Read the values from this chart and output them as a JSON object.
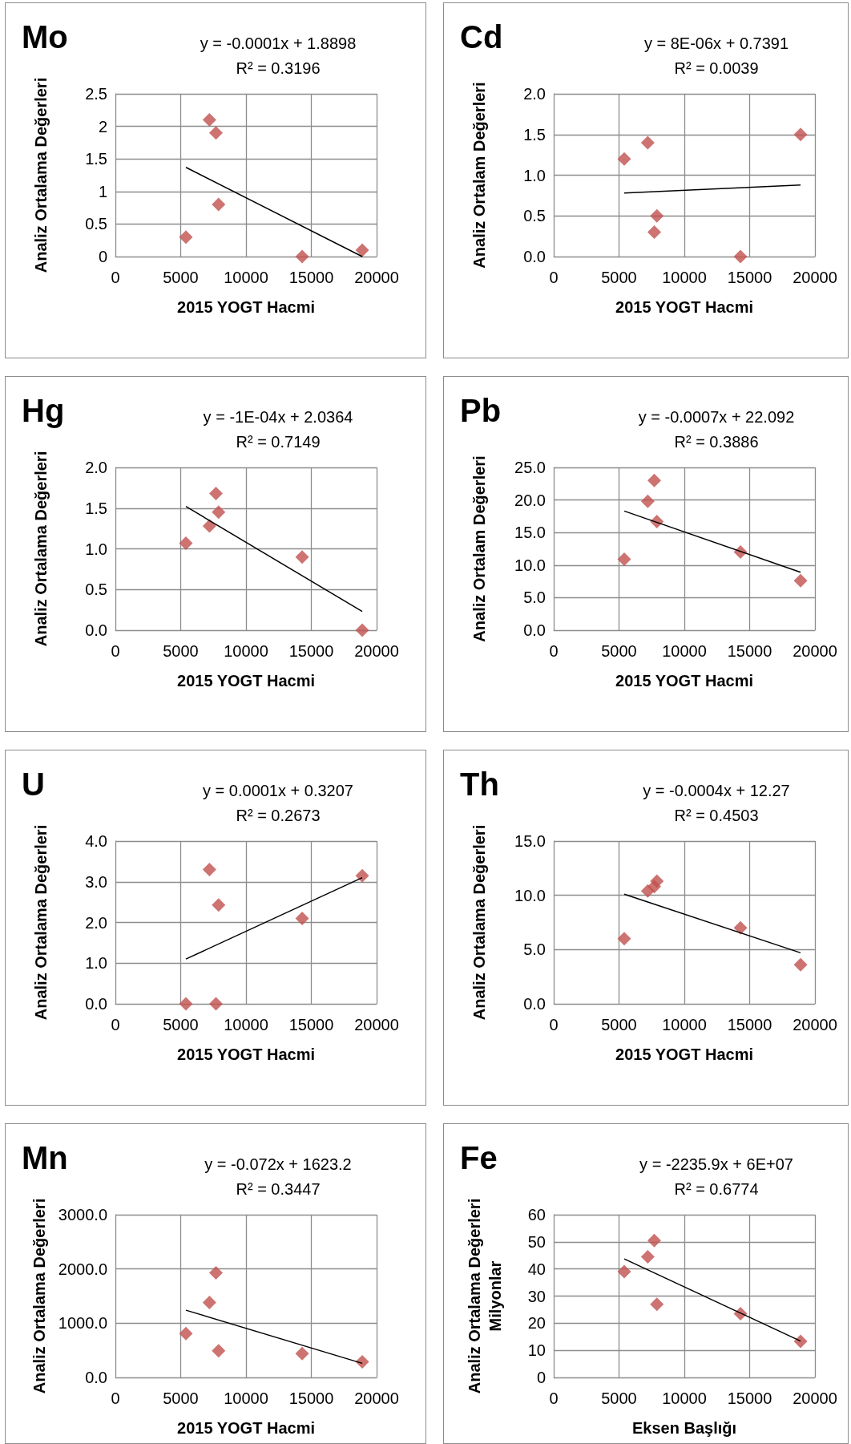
{
  "chart_data": [
    {
      "type": "scatter",
      "title": "Mo",
      "xlabel": "2015 YOGT Hacmi",
      "ylabel": "Analiz Ortalama Değerleri",
      "annotations": [
        "y = -0.0001x + 1.8898",
        "R² = 0.3196"
      ],
      "xlim": [
        0,
        20000
      ],
      "xticks": [
        0,
        5000,
        10000,
        15000,
        20000
      ],
      "ylim": [
        0,
        2.5
      ],
      "yticks": [
        0,
        0.5,
        1,
        1.5,
        2,
        2.5
      ],
      "grid": true,
      "marker": "diamond",
      "series": [
        {
          "color": "#c0504d",
          "x": [
            5400,
            7200,
            7700,
            7900,
            14300,
            18900
          ],
          "values": [
            0.3,
            2.1,
            1.9,
            0.8,
            0,
            0.1
          ]
        },
        {
          "type": "line",
          "color": "#000000",
          "marker": "none",
          "x": [
            5400,
            18900
          ],
          "values": [
            1.37,
            0
          ]
        }
      ]
    },
    {
      "type": "scatter",
      "title": "Cd",
      "xlabel": "2015 YOGT Hacmi",
      "ylabel": "Analiz Ortalam Değerleri",
      "annotations": [
        "y = 8E-06x + 0.7391",
        "R² = 0.0039"
      ],
      "xlim": [
        0,
        20000
      ],
      "xticks": [
        0,
        5000,
        10000,
        15000,
        20000
      ],
      "ylim": [
        0,
        2
      ],
      "yticks": [
        {
          "value": 0,
          "label": "0.0"
        },
        {
          "value": 0.5,
          "label": "0.5"
        },
        {
          "value": 1,
          "label": "1.0"
        },
        {
          "value": 1.5,
          "label": "1.5"
        },
        {
          "value": 2,
          "label": "2.0"
        }
      ],
      "grid": true,
      "marker": "diamond",
      "series": [
        {
          "color": "#c0504d",
          "x": [
            5400,
            7200,
            7700,
            7900,
            14300,
            18900
          ],
          "values": [
            1.2,
            1.4,
            0.3,
            0.5,
            0,
            1.5
          ]
        },
        {
          "type": "line",
          "color": "#000000",
          "marker": "none",
          "x": [
            5400,
            18900
          ],
          "values": [
            0.78,
            0.88
          ]
        }
      ]
    },
    {
      "type": "scatter",
      "title": "Hg",
      "xlabel": "2015 YOGT Hacmi",
      "ylabel": "Analiz Ortalama Değerleri",
      "annotations": [
        "y = -1E-04x + 2.0364",
        "R² = 0.7149"
      ],
      "xlim": [
        0,
        20000
      ],
      "xticks": [
        0,
        5000,
        10000,
        15000,
        20000
      ],
      "ylim": [
        0,
        2
      ],
      "yticks": [
        {
          "value": 0,
          "label": "0.0"
        },
        {
          "value": 0.5,
          "label": "0.5"
        },
        {
          "value": 1,
          "label": "1.0"
        },
        {
          "value": 1.5,
          "label": "1.5"
        },
        {
          "value": 2,
          "label": "2.0"
        }
      ],
      "grid": true,
      "marker": "diamond",
      "series": [
        {
          "color": "#c0504d",
          "x": [
            5400,
            7200,
            7700,
            7900,
            14300,
            18900
          ],
          "values": [
            1.07,
            1.28,
            1.68,
            1.45,
            0.9,
            0
          ]
        },
        {
          "type": "line",
          "color": "#000000",
          "marker": "none",
          "x": [
            5400,
            18900
          ],
          "values": [
            1.52,
            0.23
          ]
        }
      ]
    },
    {
      "type": "scatter",
      "title": "Pb",
      "xlabel": "2015 YOGT Hacmi",
      "ylabel": "Analiz Ortalam Değerleri",
      "annotations": [
        "y = -0.0007x + 22.092",
        "R² = 0.3886"
      ],
      "xlim": [
        0,
        20000
      ],
      "xticks": [
        0,
        5000,
        10000,
        15000,
        20000
      ],
      "ylim": [
        0,
        25
      ],
      "yticks": [
        {
          "value": 0,
          "label": "0.0"
        },
        {
          "value": 5,
          "label": "5.0"
        },
        {
          "value": 10,
          "label": "10.0"
        },
        {
          "value": 15,
          "label": "15.0"
        },
        {
          "value": 20,
          "label": "20.0"
        },
        {
          "value": 25,
          "label": "25.0"
        }
      ],
      "grid": true,
      "marker": "diamond",
      "series": [
        {
          "color": "#c0504d",
          "x": [
            5400,
            7200,
            7700,
            7900,
            14300,
            18900
          ],
          "values": [
            10.9,
            19.8,
            23,
            16.7,
            12,
            7.6
          ]
        },
        {
          "type": "line",
          "color": "#000000",
          "marker": "none",
          "x": [
            5400,
            18900
          ],
          "values": [
            18.3,
            8.9
          ]
        }
      ]
    },
    {
      "type": "scatter",
      "title": "U",
      "xlabel": "2015 YOGT Hacmi",
      "ylabel": "Analiz Ortalama Değerleri",
      "annotations": [
        "y = 0.0001x + 0.3207",
        "R² = 0.2673"
      ],
      "xlim": [
        0,
        20000
      ],
      "xticks": [
        0,
        5000,
        10000,
        15000,
        20000
      ],
      "ylim": [
        0,
        4
      ],
      "yticks": [
        {
          "value": 0,
          "label": "0.0"
        },
        {
          "value": 1,
          "label": "1.0"
        },
        {
          "value": 2,
          "label": "2.0"
        },
        {
          "value": 3,
          "label": "3.0"
        },
        {
          "value": 4,
          "label": "4.0"
        }
      ],
      "grid": true,
      "marker": "diamond",
      "series": [
        {
          "color": "#c0504d",
          "x": [
            5400,
            7200,
            7700,
            7900,
            14300,
            18900
          ],
          "values": [
            0,
            3.3,
            0,
            2.43,
            2.1,
            3.15
          ]
        },
        {
          "type": "line",
          "color": "#000000",
          "marker": "none",
          "x": [
            5400,
            18900
          ],
          "values": [
            1.1,
            3.1
          ]
        }
      ]
    },
    {
      "type": "scatter",
      "title": "Th",
      "xlabel": "2015 YOGT Hacmi",
      "ylabel": "Analiz Ortalama Değerleri",
      "annotations": [
        "y = -0.0004x + 12.27",
        "R² = 0.4503"
      ],
      "xlim": [
        0,
        20000
      ],
      "xticks": [
        0,
        5000,
        10000,
        15000,
        20000
      ],
      "ylim": [
        0,
        15
      ],
      "yticks": [
        {
          "value": 0,
          "label": "0.0"
        },
        {
          "value": 5,
          "label": "5.0"
        },
        {
          "value": 10,
          "label": "10.0"
        },
        {
          "value": 15,
          "label": "15.0"
        }
      ],
      "grid": true,
      "marker": "diamond",
      "series": [
        {
          "color": "#c0504d",
          "x": [
            5400,
            7200,
            7700,
            7900,
            14300,
            18900
          ],
          "values": [
            6,
            10.4,
            10.8,
            11.3,
            7,
            3.6
          ]
        },
        {
          "type": "line",
          "color": "#000000",
          "marker": "none",
          "x": [
            5400,
            18900
          ],
          "values": [
            10.1,
            4.7
          ]
        }
      ]
    },
    {
      "type": "scatter",
      "title": "Mn",
      "xlabel": "2015 YOGT Hacmi",
      "ylabel": "Analiz Ortalama Değerleri",
      "annotations": [
        "y = -0.072x + 1623.2",
        "R² = 0.3447"
      ],
      "xlim": [
        0,
        20000
      ],
      "xticks": [
        0,
        5000,
        10000,
        15000,
        20000
      ],
      "ylim": [
        0,
        3000
      ],
      "yticks": [
        {
          "value": 0,
          "label": "0.0"
        },
        {
          "value": 1000,
          "label": "1000.0"
        },
        {
          "value": 2000,
          "label": "2000.0"
        },
        {
          "value": 3000,
          "label": "3000.0"
        }
      ],
      "grid": true,
      "marker": "diamond",
      "series": [
        {
          "color": "#c0504d",
          "x": [
            5400,
            7200,
            7700,
            7900,
            14300,
            18900
          ],
          "values": [
            810,
            1380,
            1930,
            490,
            440,
            290
          ]
        },
        {
          "type": "line",
          "color": "#000000",
          "marker": "none",
          "x": [
            5400,
            18900
          ],
          "values": [
            1240,
            260
          ]
        }
      ]
    },
    {
      "type": "scatter",
      "title": "Fe",
      "xlabel": "Eksen Başlığı",
      "ylabel": "Analiz Ortalama Değerleri\nMilyonlar",
      "annotations": [
        "y = -2235.9x + 6E+07",
        "R² = 0.6774"
      ],
      "xlim": [
        0,
        20000
      ],
      "xticks": [
        0,
        5000,
        10000,
        15000,
        20000
      ],
      "ylim": [
        0,
        60
      ],
      "yticks": [
        0,
        10,
        20,
        30,
        40,
        50,
        60
      ],
      "grid": true,
      "marker": "diamond",
      "series": [
        {
          "color": "#c0504d",
          "x": [
            5400,
            7200,
            7700,
            7900,
            14300,
            18900
          ],
          "values": [
            39,
            44.5,
            50.5,
            27,
            23.5,
            13.3
          ]
        },
        {
          "type": "line",
          "color": "#000000",
          "marker": "none",
          "x": [
            5400,
            18900
          ],
          "values": [
            43.7,
            13.4
          ]
        }
      ]
    }
  ]
}
